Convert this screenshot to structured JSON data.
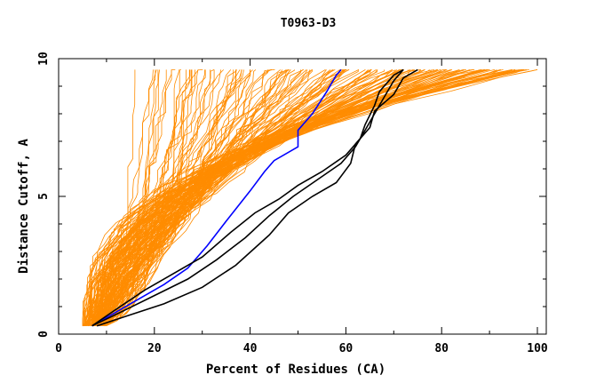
{
  "chart_data": {
    "type": "line",
    "title": "T0963-D3",
    "xlabel": "Percent of Residues (CA)",
    "ylabel": "Distance Cutoff, A",
    "xlim": [
      0,
      100
    ],
    "ylim": [
      0,
      10
    ],
    "x_ticks": [
      "0",
      "20",
      "40",
      "60",
      "80",
      "100"
    ],
    "y_ticks": [
      "0",
      "5",
      "10"
    ],
    "grid": false,
    "legend": "none",
    "colors": {
      "background_models": "#ff8c00",
      "highlight_blue": "#0000ff",
      "highlight_black": "#000000"
    },
    "background_series_count": 160,
    "series": [
      {
        "color": "#0000ff",
        "x": [
          7,
          12,
          17,
          22,
          27,
          31,
          35,
          40,
          43,
          45,
          50,
          50,
          53,
          56,
          58,
          59
        ],
        "y": [
          0.3,
          0.8,
          1.3,
          1.8,
          2.4,
          3.2,
          4.1,
          5.2,
          5.9,
          6.3,
          6.8,
          7.4,
          8.0,
          8.8,
          9.4,
          9.6
        ]
      },
      {
        "color": "#000000",
        "x": [
          7,
          12,
          18,
          24,
          30,
          36,
          41,
          46,
          50,
          55,
          60,
          63,
          64,
          66,
          67,
          70,
          72
        ],
        "y": [
          0.3,
          0.9,
          1.6,
          2.2,
          2.8,
          3.7,
          4.4,
          4.9,
          5.4,
          5.9,
          6.5,
          7.1,
          7.6,
          8.3,
          8.8,
          9.4,
          9.6
        ]
      },
      {
        "color": "#000000",
        "x": [
          8,
          15,
          22,
          30,
          37,
          44,
          48,
          53,
          58,
          61,
          62,
          65,
          66,
          70,
          72,
          75
        ],
        "y": [
          0.3,
          0.7,
          1.1,
          1.7,
          2.5,
          3.6,
          4.4,
          5.0,
          5.5,
          6.2,
          6.9,
          7.5,
          8.1,
          8.7,
          9.3,
          9.6
        ]
      },
      {
        "color": "#000000",
        "x": [
          7,
          13,
          20,
          27,
          33,
          39,
          44,
          49,
          54,
          59,
          62,
          64,
          66,
          68,
          70,
          72
        ],
        "y": [
          0.3,
          0.8,
          1.4,
          2.0,
          2.7,
          3.5,
          4.3,
          5.0,
          5.6,
          6.2,
          6.8,
          7.4,
          8.0,
          8.6,
          9.2,
          9.6
        ]
      }
    ]
  }
}
